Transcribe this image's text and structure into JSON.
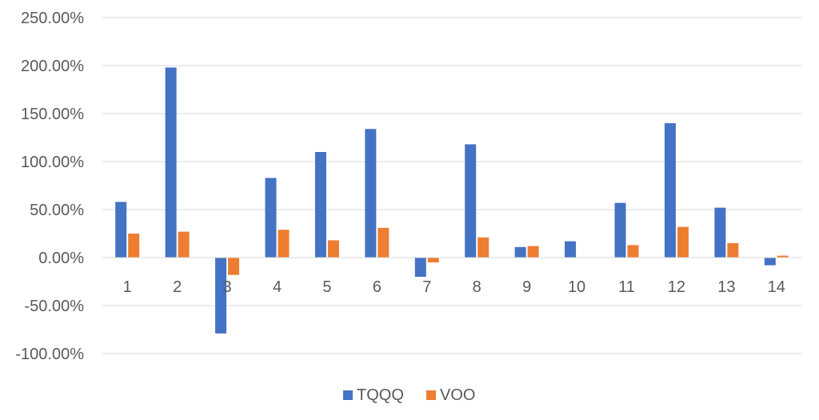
{
  "chart_data": {
    "type": "bar",
    "categories": [
      "1",
      "2",
      "3",
      "4",
      "5",
      "6",
      "7",
      "8",
      "9",
      "10",
      "11",
      "12",
      "13",
      "14"
    ],
    "series": [
      {
        "name": "TQQQ",
        "color": "#4472C4",
        "values": [
          58,
          198,
          -79,
          83,
          110,
          134,
          -20,
          118,
          11,
          17,
          57,
          140,
          52,
          -8
        ]
      },
      {
        "name": "VOO",
        "color": "#ED7D31",
        "values": [
          25,
          27,
          -18,
          29,
          18,
          31,
          -5,
          21,
          12,
          0,
          13,
          32,
          15,
          2
        ]
      }
    ],
    "yticks": [
      "250.00%",
      "200.00%",
      "150.00%",
      "100.00%",
      "50.00%",
      "0.00%",
      "-50.00%",
      "-100.00%"
    ],
    "ylim": [
      -100,
      250
    ],
    "grid": true,
    "legend": "bottom"
  }
}
